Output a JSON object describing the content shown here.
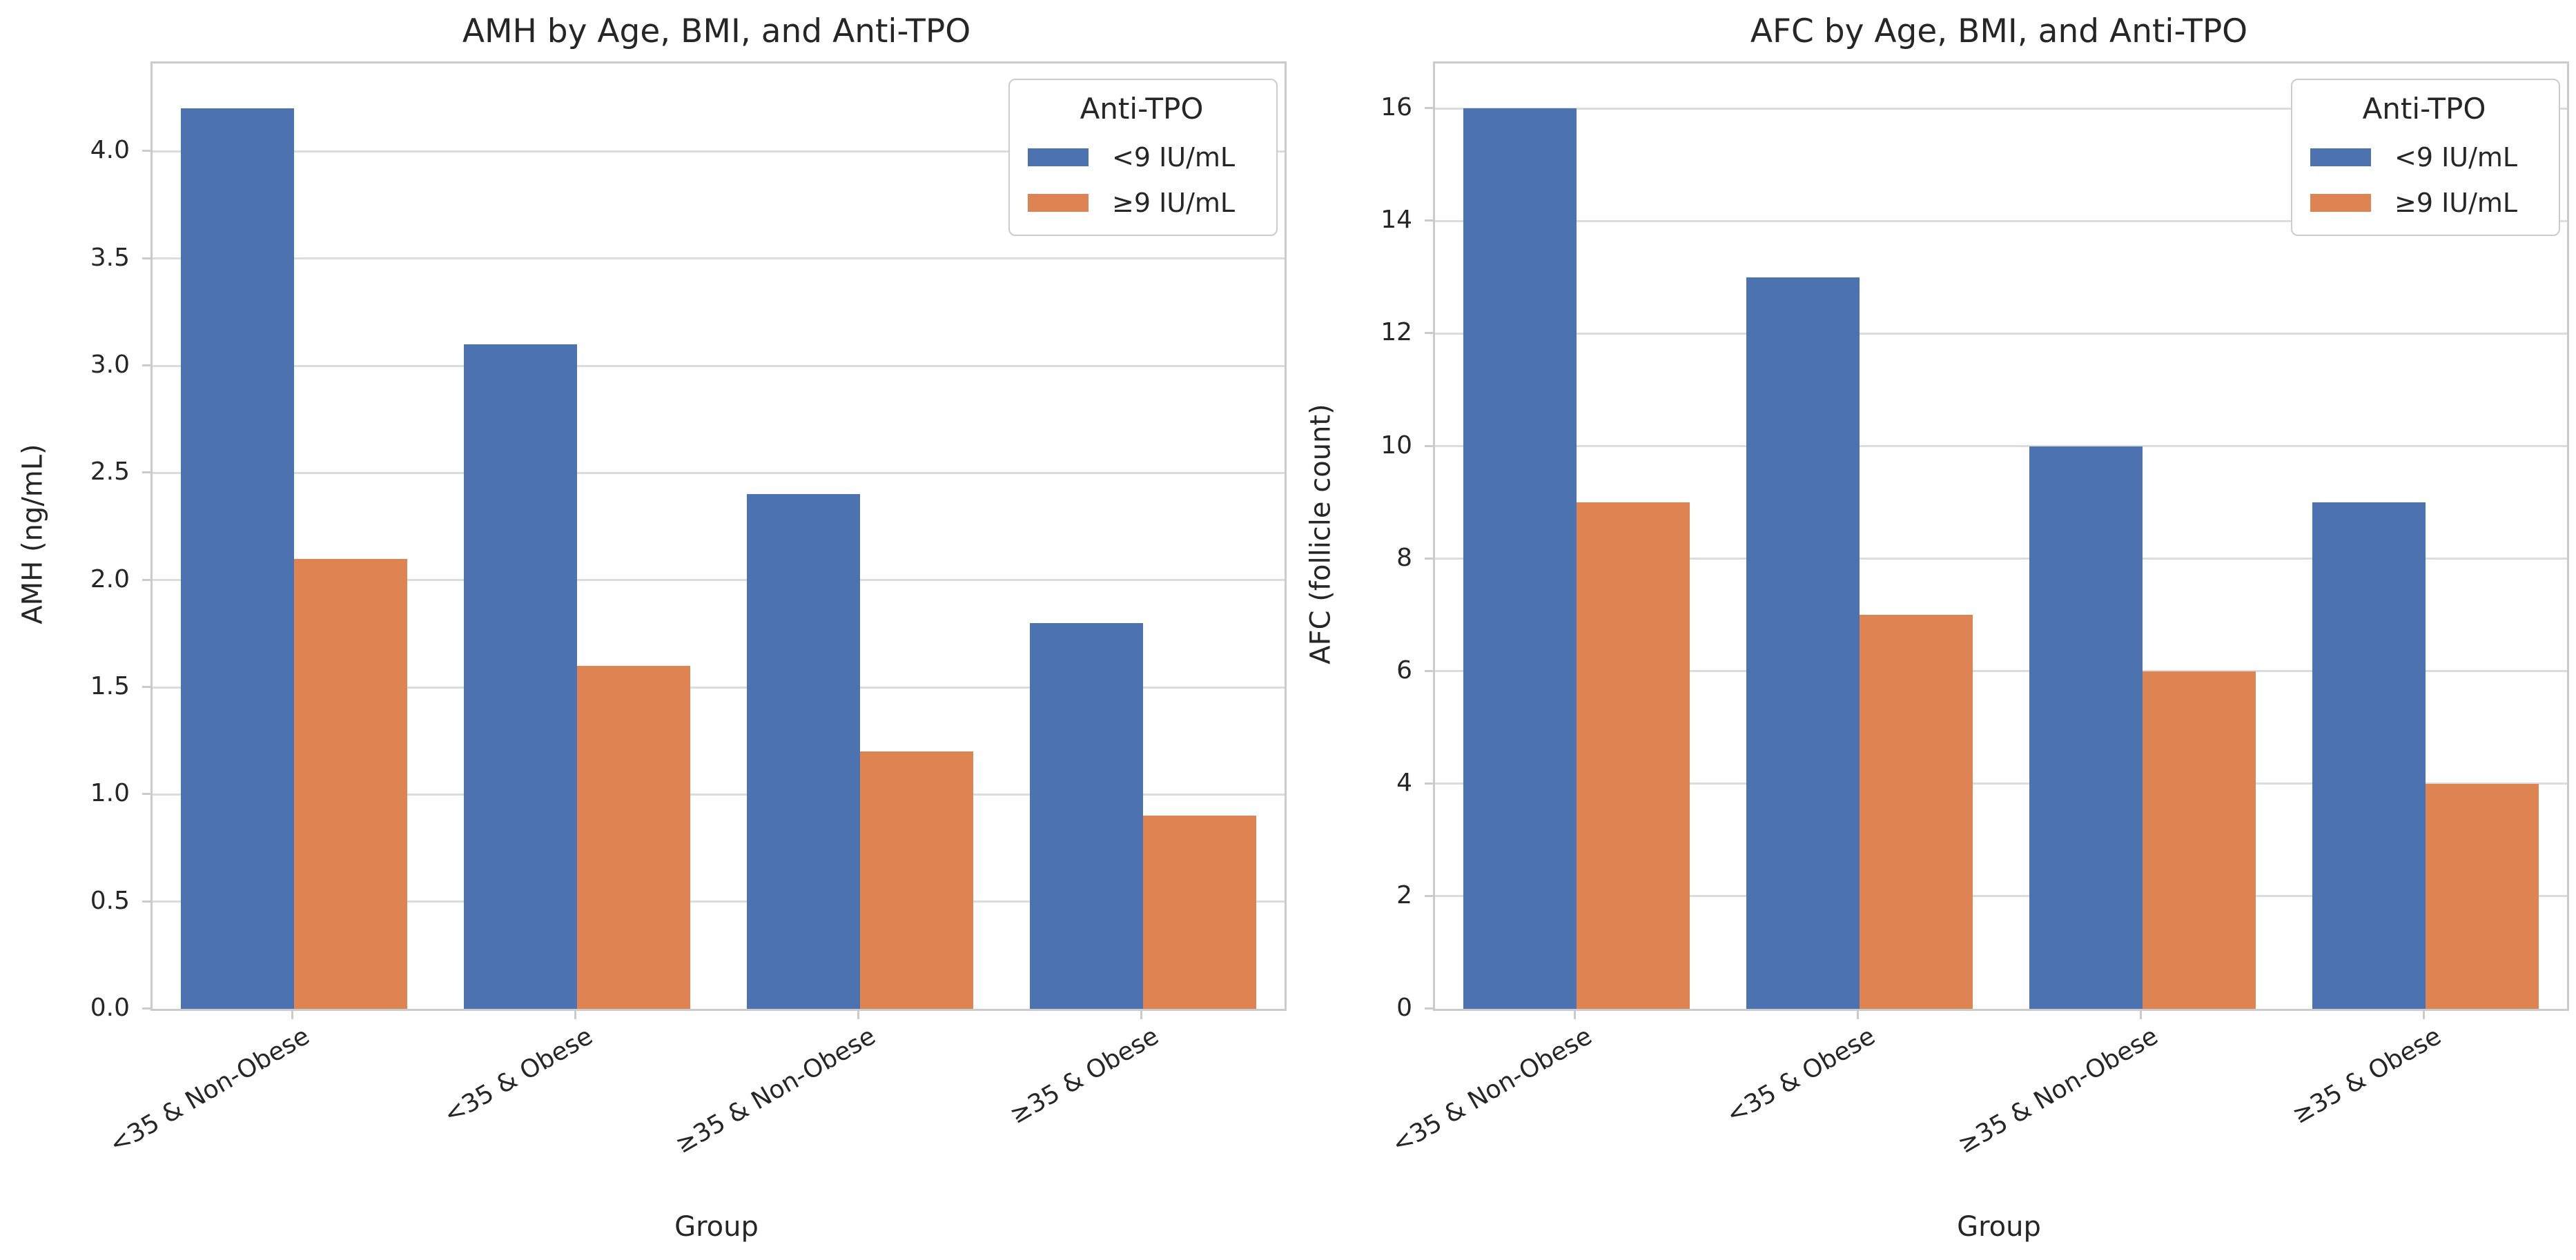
{
  "figure": {
    "background": "#ffffff",
    "blue": "#4C72B0",
    "orange": "#DD8452"
  },
  "chart_data": [
    {
      "type": "bar",
      "title": "AMH by Age, BMI, and Anti-TPO",
      "xlabel": "Group",
      "ylabel": "AMH (ng/mL)",
      "ylim": [
        0,
        4.41
      ],
      "grid": true,
      "legend": {
        "title": "Anti-TPO",
        "position": "upper right",
        "entries": [
          {
            "label": "<9 IU/mL",
            "color": "#4C72B0"
          },
          {
            "label": "≥9 IU/mL",
            "color": "#DD8452"
          }
        ]
      },
      "yticks": [
        "0.0",
        "0.5",
        "1.0",
        "1.5",
        "2.0",
        "2.5",
        "3.0",
        "3.5",
        "4.0"
      ],
      "categories": [
        "<35 & Non-Obese",
        "<35 & Obese",
        "≥35 & Non-Obese",
        "≥35 & Obese"
      ],
      "series": [
        {
          "name": "<9 IU/mL",
          "color": "#4C72B0",
          "values": [
            4.2,
            3.1,
            2.4,
            1.8
          ]
        },
        {
          "name": "≥9 IU/mL",
          "color": "#DD8452",
          "values": [
            2.1,
            1.6,
            1.2,
            0.9
          ]
        }
      ]
    },
    {
      "type": "bar",
      "title": "AFC by Age, BMI, and Anti-TPO",
      "xlabel": "Group",
      "ylabel": "AFC (follicle count)",
      "ylim": [
        0,
        16.8
      ],
      "grid": true,
      "legend": {
        "title": "Anti-TPO",
        "position": "upper right",
        "entries": [
          {
            "label": "<9 IU/mL",
            "color": "#4C72B0"
          },
          {
            "label": "≥9 IU/mL",
            "color": "#DD8452"
          }
        ]
      },
      "yticks": [
        "0",
        "2",
        "4",
        "6",
        "8",
        "10",
        "12",
        "14",
        "16"
      ],
      "categories": [
        "<35 & Non-Obese",
        "<35 & Obese",
        "≥35 & Non-Obese",
        "≥35 & Obese"
      ],
      "series": [
        {
          "name": "<9 IU/mL",
          "color": "#4C72B0",
          "values": [
            16,
            13,
            10,
            9
          ]
        },
        {
          "name": "≥9 IU/mL",
          "color": "#DD8452",
          "values": [
            9,
            7,
            6,
            4
          ]
        }
      ]
    }
  ]
}
